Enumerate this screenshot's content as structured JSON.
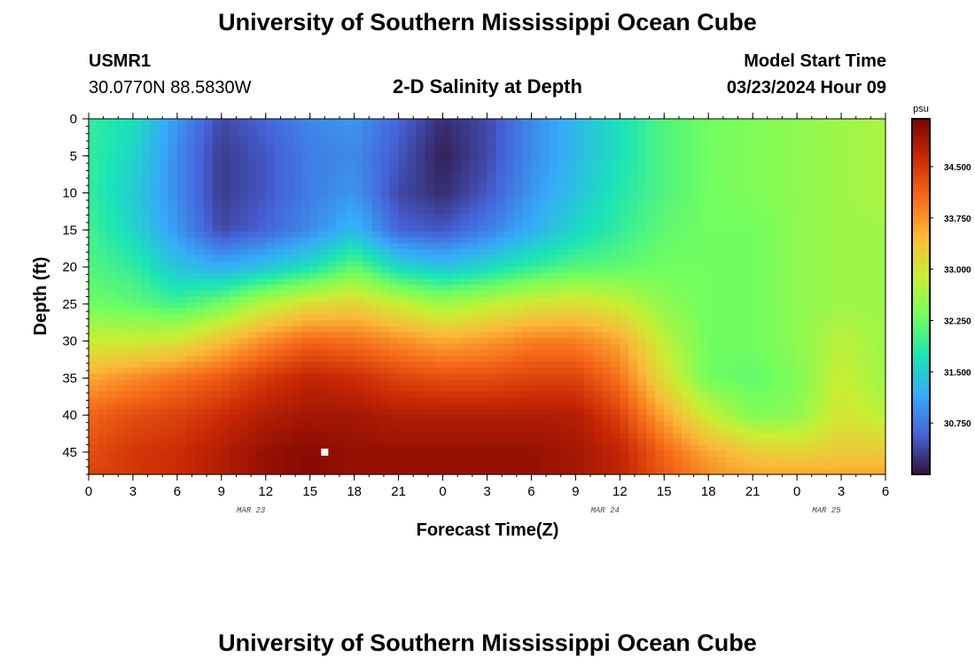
{
  "header": {
    "title": "University of Southern Mississippi Ocean Cube",
    "station": "USMR1",
    "coords": "30.0770N  88.5830W",
    "model_start_label": "Model Start Time",
    "model_start_value": "03/23/2024 Hour 09",
    "footer_title": "University of Southern Mississippi Ocean Cube"
  },
  "chart_data": {
    "type": "heatmap",
    "title": "2-D Salinity at Depth",
    "xlabel": "Forecast Time(Z)",
    "ylabel": "Depth (ft)",
    "x_ticks": [
      "0",
      "3",
      "6",
      "9",
      "12",
      "15",
      "18",
      "21",
      "0",
      "3",
      "6",
      "9",
      "12",
      "15",
      "18",
      "21",
      "0",
      "3",
      "6"
    ],
    "x_range_hours": [
      0,
      54
    ],
    "date_labels": [
      {
        "label": "MAR 23",
        "hour": 11
      },
      {
        "label": "MAR 24",
        "hour": 35
      },
      {
        "label": "MAR 25",
        "hour": 50
      }
    ],
    "y_ticks": [
      0,
      5,
      10,
      15,
      20,
      25,
      30,
      35,
      40,
      45
    ],
    "y_range": [
      0,
      48
    ],
    "y_reversed": true,
    "colorbar": {
      "unit": "psu",
      "min": 30.0,
      "max": 35.2,
      "ticks": [
        30.75,
        31.5,
        32.25,
        33.0,
        33.75,
        34.5
      ],
      "tick_labels": [
        "30.750",
        "31.500",
        "32.250",
        "33.000",
        "33.750",
        "34.500"
      ],
      "colors": [
        "#30123b",
        "#4662d7",
        "#36aaf9",
        "#1ae4b6",
        "#72fe5e",
        "#c8ef34",
        "#faba39",
        "#f66b19",
        "#ca2a04",
        "#7a0403"
      ]
    },
    "salinity_profiles": {
      "depths_ft": [
        0,
        5,
        10,
        15,
        20,
        25,
        30,
        35,
        40,
        45,
        48
      ],
      "columns": [
        {
          "hour": 0,
          "values": [
            31.9,
            31.9,
            31.9,
            32.0,
            32.1,
            32.3,
            32.9,
            33.6,
            34.1,
            34.3,
            34.4
          ]
        },
        {
          "hour": 3,
          "values": [
            31.7,
            31.6,
            31.5,
            31.6,
            31.9,
            32.2,
            32.9,
            33.8,
            34.3,
            34.5,
            34.5
          ]
        },
        {
          "hour": 6,
          "values": [
            31.0,
            30.9,
            30.9,
            31.0,
            31.4,
            32.0,
            33.0,
            34.0,
            34.4,
            34.6,
            34.6
          ]
        },
        {
          "hour": 9,
          "values": [
            30.4,
            30.3,
            30.3,
            30.4,
            31.2,
            32.3,
            33.4,
            34.2,
            34.6,
            34.8,
            34.8
          ]
        },
        {
          "hour": 12,
          "values": [
            30.6,
            30.5,
            30.5,
            30.6,
            31.4,
            32.8,
            33.8,
            34.5,
            34.8,
            35.0,
            35.0
          ]
        },
        {
          "hour": 15,
          "values": [
            30.9,
            30.8,
            30.8,
            30.9,
            31.7,
            33.1,
            34.1,
            34.7,
            34.9,
            35.1,
            35.1
          ]
        },
        {
          "hour": 18,
          "values": [
            31.0,
            30.9,
            31.0,
            31.3,
            32.2,
            33.2,
            34.0,
            34.6,
            34.9,
            35.0,
            35.0
          ]
        },
        {
          "hour": 21,
          "values": [
            30.6,
            30.5,
            30.4,
            30.6,
            31.6,
            32.9,
            33.8,
            34.4,
            34.8,
            35.0,
            35.0
          ]
        },
        {
          "hour": 24,
          "values": [
            30.2,
            30.1,
            30.2,
            30.5,
            31.4,
            32.6,
            33.6,
            34.3,
            34.8,
            35.0,
            35.0
          ]
        },
        {
          "hour": 27,
          "values": [
            30.4,
            30.4,
            30.5,
            30.8,
            31.6,
            32.8,
            33.7,
            34.3,
            34.8,
            35.0,
            35.0
          ]
        },
        {
          "hour": 30,
          "values": [
            30.9,
            30.9,
            31.0,
            31.2,
            31.9,
            33.0,
            33.9,
            34.4,
            34.8,
            35.0,
            35.0
          ]
        },
        {
          "hour": 33,
          "values": [
            31.3,
            31.3,
            31.4,
            31.6,
            32.1,
            33.1,
            33.9,
            34.4,
            34.8,
            34.9,
            34.9
          ]
        },
        {
          "hour": 36,
          "values": [
            31.7,
            31.7,
            31.8,
            31.9,
            32.2,
            32.9,
            33.6,
            34.0,
            34.4,
            34.7,
            34.7
          ]
        },
        {
          "hour": 39,
          "values": [
            32.1,
            32.1,
            32.1,
            32.2,
            32.3,
            32.5,
            32.8,
            33.1,
            33.6,
            34.1,
            34.2
          ]
        },
        {
          "hour": 42,
          "values": [
            32.3,
            32.3,
            32.3,
            32.3,
            32.3,
            32.3,
            32.3,
            32.3,
            32.9,
            33.6,
            33.8
          ]
        },
        {
          "hour": 45,
          "values": [
            32.4,
            32.4,
            32.4,
            32.3,
            32.3,
            32.3,
            32.3,
            32.2,
            32.4,
            33.3,
            33.6
          ]
        },
        {
          "hour": 48,
          "values": [
            32.5,
            32.5,
            32.5,
            32.5,
            32.5,
            32.5,
            32.5,
            32.4,
            32.5,
            33.2,
            33.6
          ]
        },
        {
          "hour": 51,
          "values": [
            32.6,
            32.6,
            32.6,
            32.6,
            32.6,
            32.6,
            32.8,
            32.9,
            33.0,
            33.3,
            33.6
          ]
        },
        {
          "hour": 54,
          "values": [
            32.7,
            32.7,
            32.7,
            32.6,
            32.6,
            32.6,
            32.6,
            32.6,
            32.8,
            33.3,
            33.6
          ]
        }
      ]
    },
    "marker": {
      "hour": 16,
      "depth": 45
    }
  }
}
